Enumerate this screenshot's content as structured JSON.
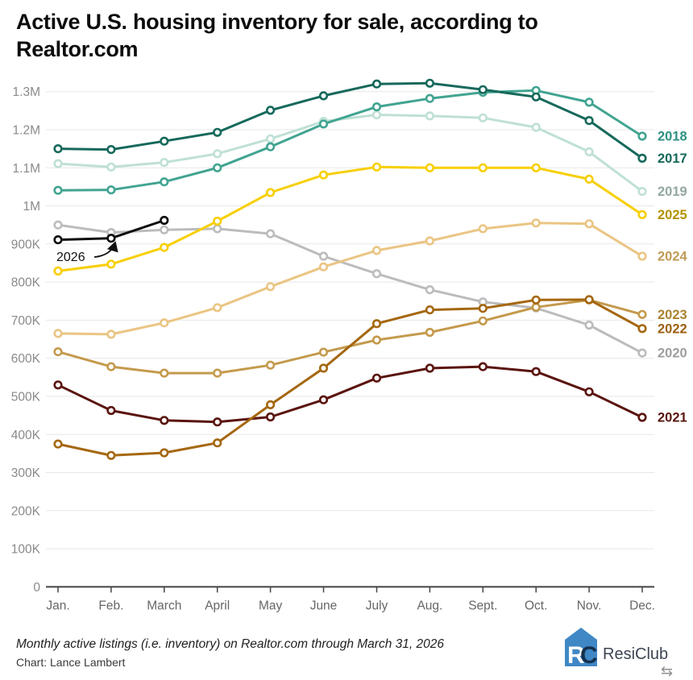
{
  "header": {
    "title_line1": "Active U.S. housing inventory for sale, according to",
    "title_line2": "Realtor.com"
  },
  "chart_data": {
    "type": "line",
    "title": "Active U.S. housing inventory for sale, according to Realtor.com",
    "x_categories": [
      "Jan.",
      "Feb.",
      "March",
      "April",
      "May",
      "June",
      "July",
      "Aug.",
      "Sept.",
      "Oct.",
      "Nov.",
      "Dec."
    ],
    "y_ticks": [
      {
        "label": "1.3M",
        "value_k": 1300
      },
      {
        "label": "1.2M",
        "value_k": 1200
      },
      {
        "label": "1.1M",
        "value_k": 1100
      },
      {
        "label": "1M",
        "value_k": 1000
      },
      {
        "label": "900K",
        "value_k": 900
      },
      {
        "label": "800K",
        "value_k": 800
      },
      {
        "label": "700K",
        "value_k": 700
      },
      {
        "label": "600K",
        "value_k": 600
      },
      {
        "label": "500K",
        "value_k": 500
      },
      {
        "label": "400K",
        "value_k": 400
      },
      {
        "label": "300K",
        "value_k": 300
      },
      {
        "label": "200K",
        "value_k": 200
      },
      {
        "label": "100K",
        "value_k": 100
      },
      {
        "label": "0",
        "value_k": 0
      }
    ],
    "ylim_k": [
      0,
      1360
    ],
    "grid": "horizontal",
    "legend_position": "labels-at-line-ends-right",
    "units": "active listings",
    "series": [
      {
        "name": "2019",
        "color": "#bfe0d5",
        "label_color": "#93a79f",
        "show_label": true,
        "values_k": [
          1111,
          1102,
          1114,
          1137,
          1176,
          1222,
          1239,
          1236,
          1231,
          1206,
          1142,
          1038
        ]
      },
      {
        "name": "2020",
        "color": "#bcbcbc",
        "label_color": "#9e9e9e",
        "show_label": true,
        "values_k": [
          950,
          930,
          937,
          940,
          927,
          868,
          822,
          780,
          748,
          732,
          687,
          614
        ]
      },
      {
        "name": "2018",
        "color": "#41a491",
        "label_color": "#2e9181",
        "show_label": true,
        "values_k": [
          1041,
          1042,
          1063,
          1100,
          1155,
          1215,
          1260,
          1282,
          1298,
          1303,
          1272,
          1183
        ]
      },
      {
        "name": "2017",
        "color": "#16695b",
        "label_color": "#16695b",
        "show_label": true,
        "values_k": [
          1150,
          1148,
          1170,
          1193,
          1251,
          1289,
          1320,
          1322,
          1305,
          1286,
          1224,
          1125
        ]
      },
      {
        "name": "2024",
        "color": "#eac583",
        "label_color": "#c09a55",
        "show_label": true,
        "values_k": [
          665,
          663,
          693,
          733,
          788,
          840,
          883,
          908,
          940,
          955,
          953,
          868
        ]
      },
      {
        "name": "2021",
        "color": "#5a140e",
        "label_color": "#5a140e",
        "show_label": true,
        "values_k": [
          530,
          463,
          437,
          433,
          446,
          491,
          548,
          574,
          578,
          565,
          512,
          445
        ]
      },
      {
        "name": "2023",
        "color": "#c49a4d",
        "label_color": "#aa8231",
        "show_label": true,
        "values_k": [
          617,
          578,
          561,
          561,
          582,
          616,
          648,
          668,
          698,
          734,
          753,
          715
        ]
      },
      {
        "name": "2022",
        "color": "#a5670f",
        "label_color": "#9d5f10",
        "show_label": true,
        "values_k": [
          375,
          345,
          352,
          378,
          478,
          574,
          691,
          727,
          731,
          753,
          754,
          678
        ]
      },
      {
        "name": "2025",
        "color": "#f8cf02",
        "label_color": "#b29200",
        "show_label": true,
        "values_k": [
          829,
          847,
          891,
          960,
          1035,
          1081,
          1102,
          1100,
          1100,
          1100,
          1070,
          977
        ]
      },
      {
        "name": "2026",
        "color": "#0d0d0d",
        "label_color": "#111111",
        "show_label": false,
        "values_k": [
          911,
          915,
          962
        ]
      }
    ],
    "annotation": {
      "text": "2026",
      "points_to": "2026 line, February–March segment"
    }
  },
  "footer": {
    "note": "Monthly active listings (i.e. inventory) on Realtor.com through March 31, 2026",
    "credit": "Chart: Lance Lambert",
    "logo_text": "ResiClub",
    "logo_monogram_r": "R",
    "logo_monogram_c": "C"
  },
  "colors": {
    "background": "#ffffff",
    "gridline": "#e7e7e7",
    "axis": "#444444",
    "logo_blue": "#3f87c5",
    "logo_navy": "#15314e"
  }
}
